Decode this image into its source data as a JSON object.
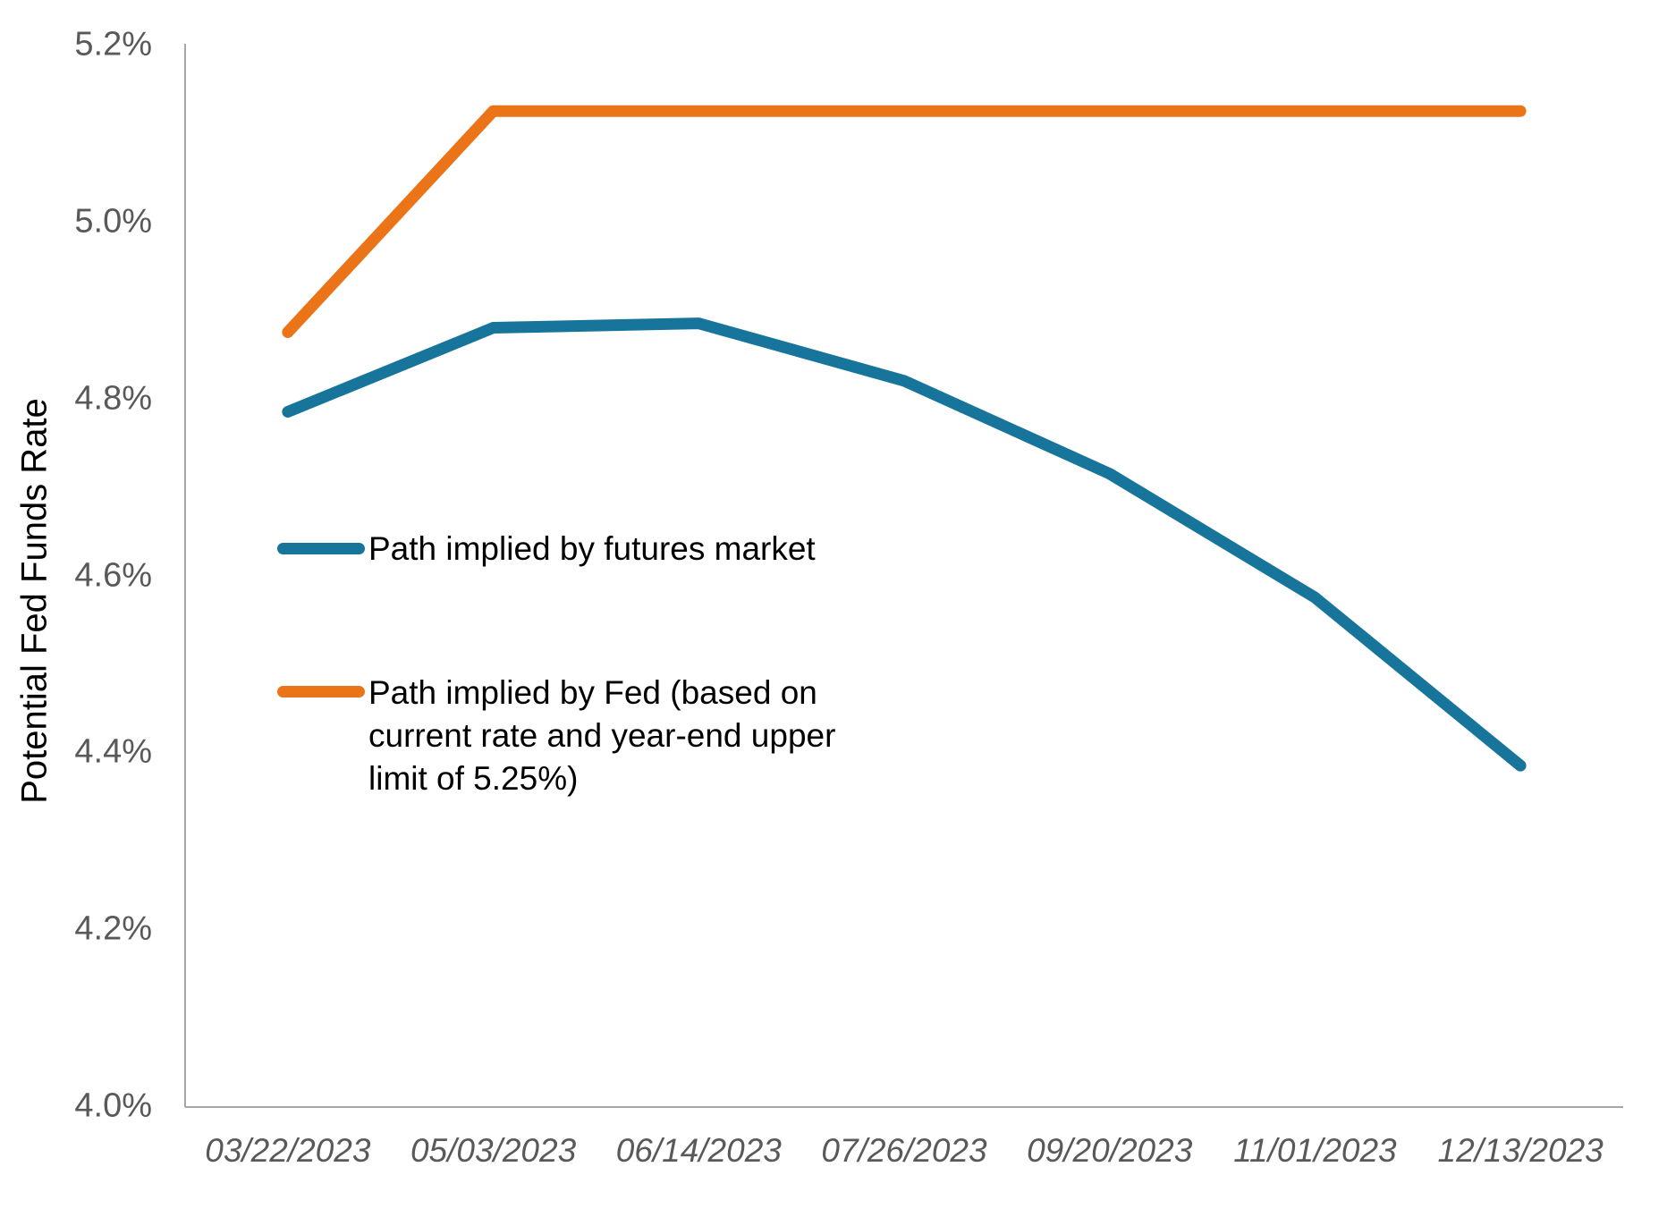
{
  "chart_data": {
    "type": "line",
    "title": "",
    "xlabel": "",
    "ylabel": "Potential Fed Funds Rate",
    "categories": [
      "03/22/2023",
      "05/03/2023",
      "06/14/2023",
      "07/26/2023",
      "09/20/2023",
      "11/01/2023",
      "12/13/2023"
    ],
    "series": [
      {
        "name": "Path implied by futures market",
        "color": "#17749B",
        "values": [
          4.785,
          4.88,
          4.885,
          4.82,
          4.715,
          4.575,
          4.385
        ]
      },
      {
        "name": "Path implied by Fed (based on current rate and year-end upper limit of 5.25%)",
        "color": "#EB7418",
        "values": [
          4.875,
          5.125,
          5.125,
          5.125,
          5.125,
          5.125,
          5.125
        ]
      }
    ],
    "ylim": [
      4.0,
      5.2
    ],
    "y_ticks": [
      "5.2%",
      "5.0%",
      "4.8%",
      "4.6%",
      "4.4%",
      "4.2%",
      "4.0%"
    ],
    "y_tick_values": [
      5.2,
      5.0,
      4.8,
      4.6,
      4.4,
      4.2,
      4.0
    ],
    "grid": false,
    "legend_position": "inside-left"
  },
  "axis": {
    "y_title": "Potential Fed Funds Rate"
  },
  "legend": {
    "futures_label": "Path implied by futures market",
    "fed_label_lines": {
      "0": "Path implied by Fed (based on",
      "1": "current rate and year-end upper",
      "2": "limit of 5.25%)"
    }
  },
  "colors": {
    "futures": "#17749B",
    "fed": "#EB7418",
    "axis_line": "#A6A6A6",
    "tick_text": "#595959",
    "text": "#000000"
  }
}
